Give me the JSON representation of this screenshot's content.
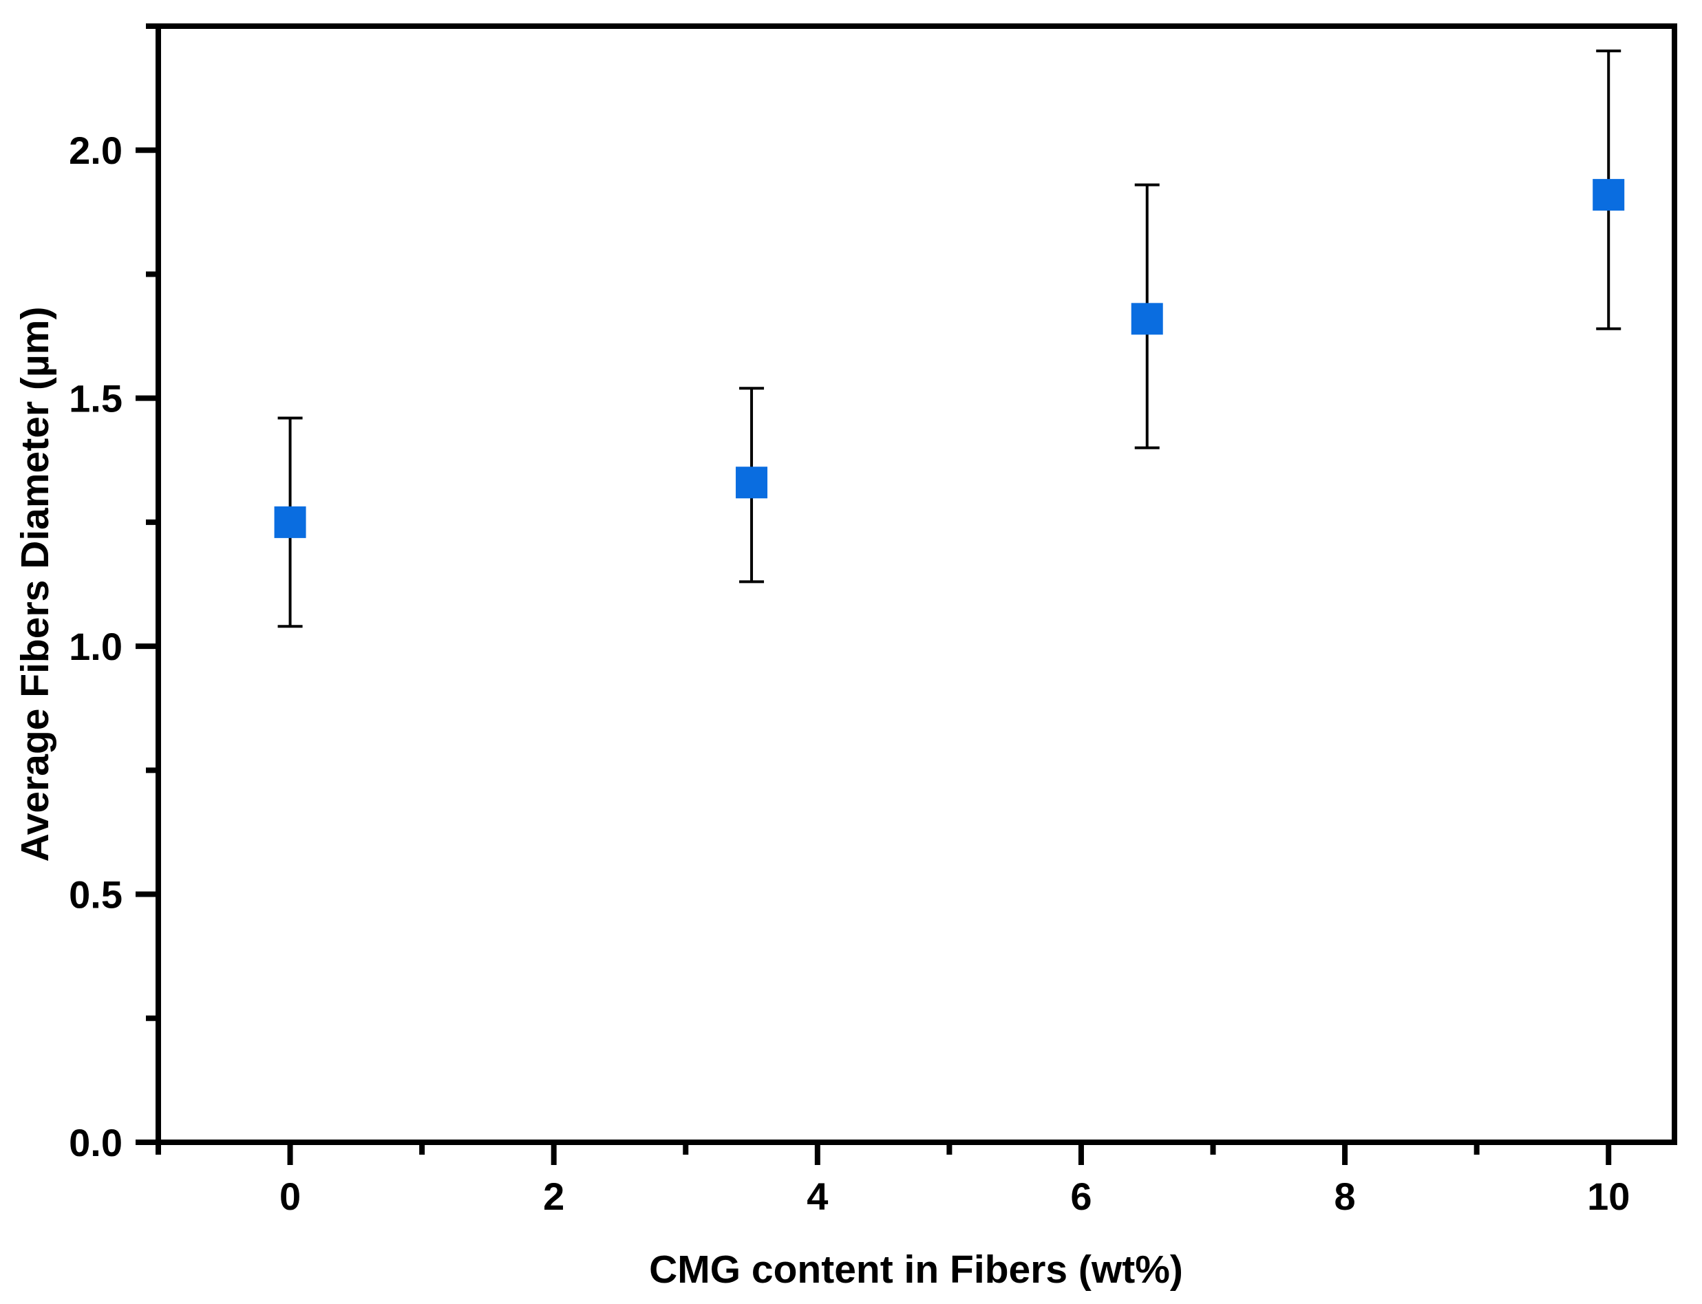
{
  "chart_data": {
    "type": "scatter",
    "title": "",
    "xlabel": "CMG content in Fibers (wt%)",
    "ylabel": "Average Fibers Diameter (µm)",
    "xlim": [
      -1,
      10.5
    ],
    "ylim": [
      0,
      2.25
    ],
    "grid": "off",
    "legend": "none",
    "background_color": "#ffffff",
    "frame_color": "#000000",
    "error_bar_color": "#000000",
    "x_ticks": {
      "major_values": [
        0,
        2,
        4,
        6,
        8,
        10
      ],
      "major_labels": [
        "0",
        "2",
        "4",
        "6",
        "8",
        "10"
      ],
      "minor_values": [
        -1,
        1,
        3,
        5,
        7,
        9
      ]
    },
    "y_ticks": {
      "major_values": [
        0,
        0.5,
        1.0,
        1.5,
        2.0
      ],
      "major_labels": [
        "0.0",
        "0.5",
        "1.0",
        "1.5",
        "2.0"
      ],
      "minor_values": [
        0.25,
        0.75,
        1.25,
        1.75,
        2.25
      ]
    },
    "series": [
      {
        "name": "average-fiber-diameter",
        "marker": "square",
        "marker_color": "#0A6DE0",
        "points": [
          {
            "x": 0,
            "y": 1.25,
            "y_upper": 1.46,
            "y_lower": 1.04
          },
          {
            "x": 3.5,
            "y": 1.33,
            "y_upper": 1.52,
            "y_lower": 1.13
          },
          {
            "x": 6.5,
            "y": 1.66,
            "y_upper": 1.93,
            "y_lower": 1.4
          },
          {
            "x": 10,
            "y": 1.91,
            "y_upper": 2.2,
            "y_lower": 1.64
          }
        ]
      }
    ]
  }
}
